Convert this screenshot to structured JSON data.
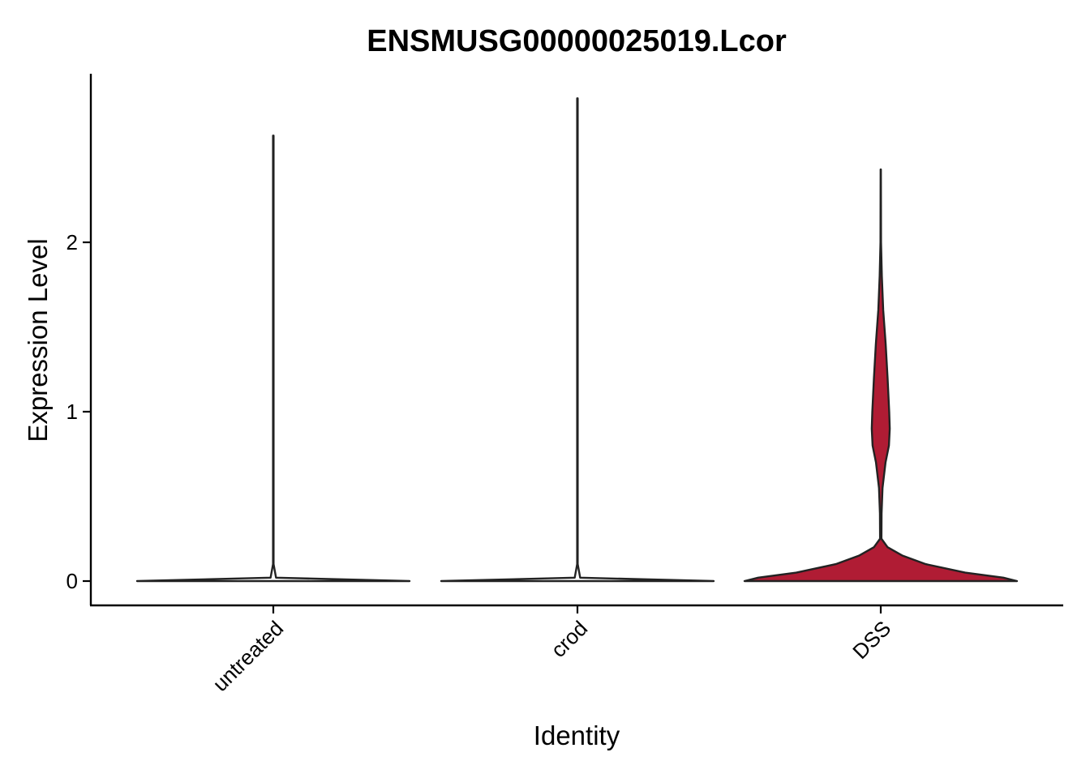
{
  "chart_data": {
    "type": "violin",
    "title": "ENSMUSG00000025019.Lcor",
    "xlabel": "Identity",
    "ylabel": "Expression Level",
    "categories": [
      "untreated",
      "crod",
      "DSS"
    ],
    "y_ticks": [
      0,
      1,
      2
    ],
    "ylim": [
      -0.14,
      2.97
    ],
    "grid": false,
    "legend": "none",
    "series": [
      {
        "category": "untreated",
        "min": 0,
        "max": 2.63,
        "fill": "#ffffff",
        "density": [
          [
            0,
            1.0
          ],
          [
            0.02,
            0.02
          ],
          [
            0.1,
            0.002
          ],
          [
            2.63,
            0.002
          ]
        ]
      },
      {
        "category": "crod",
        "min": 0,
        "max": 2.85,
        "fill": "#ffffff",
        "density": [
          [
            0,
            1.0
          ],
          [
            0.02,
            0.02
          ],
          [
            0.1,
            0.002
          ],
          [
            2.85,
            0.002
          ]
        ]
      },
      {
        "category": "DSS",
        "min": 0,
        "max": 2.43,
        "fill": "#b01c34",
        "density": [
          [
            0,
            1.0
          ],
          [
            0.02,
            0.9
          ],
          [
            0.05,
            0.62
          ],
          [
            0.1,
            0.33
          ],
          [
            0.15,
            0.16
          ],
          [
            0.2,
            0.05
          ],
          [
            0.25,
            0.005
          ],
          [
            0.4,
            0.006
          ],
          [
            0.55,
            0.013
          ],
          [
            0.7,
            0.035
          ],
          [
            0.8,
            0.06
          ],
          [
            0.9,
            0.066
          ],
          [
            1.0,
            0.062
          ],
          [
            1.2,
            0.05
          ],
          [
            1.4,
            0.036
          ],
          [
            1.6,
            0.018
          ],
          [
            1.8,
            0.008
          ],
          [
            2.0,
            0.002
          ],
          [
            2.43,
            0.001
          ]
        ]
      }
    ]
  }
}
